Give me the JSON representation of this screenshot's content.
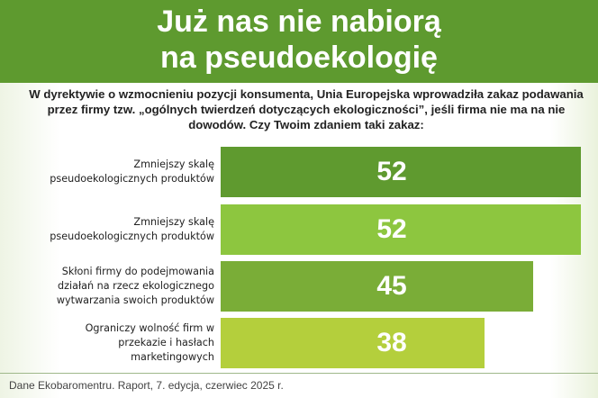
{
  "chart_data": {
    "type": "bar",
    "orientation": "horizontal",
    "title": [
      "Już nas nie nabiorą",
      "na pseudoekologię"
    ],
    "subtitle": "W dyrektywie o wzmocnieniu pozycji konsumenta, Unia Europejska wprowadziła zakaz podawania przez firmy tzw. „ogólnych twierdzeń dotyczących ekologiczności”, jeśli firma nie ma na nie dowodów. Czy Twoim zdaniem taki zakaz:",
    "categories": [
      "Zmniejszy skalę pseudoekologicznych produktów",
      "Zmniejszy skalę pseudoekologicznych produktów",
      "Skłoni firmy do podejmowania działań na rzecz ekologicznego wytwarzania swoich produktów",
      "Ograniczy wolność firm w przekazie i hasłach marketingowych"
    ],
    "values": [
      52,
      52,
      45,
      38
    ],
    "colors": [
      "#5f9a2f",
      "#8dc63f",
      "#7aad37",
      "#b4cf3c"
    ],
    "source": "Dane Ekobaromentru. Raport, 7. edycja, czerwiec 2025 r."
  }
}
